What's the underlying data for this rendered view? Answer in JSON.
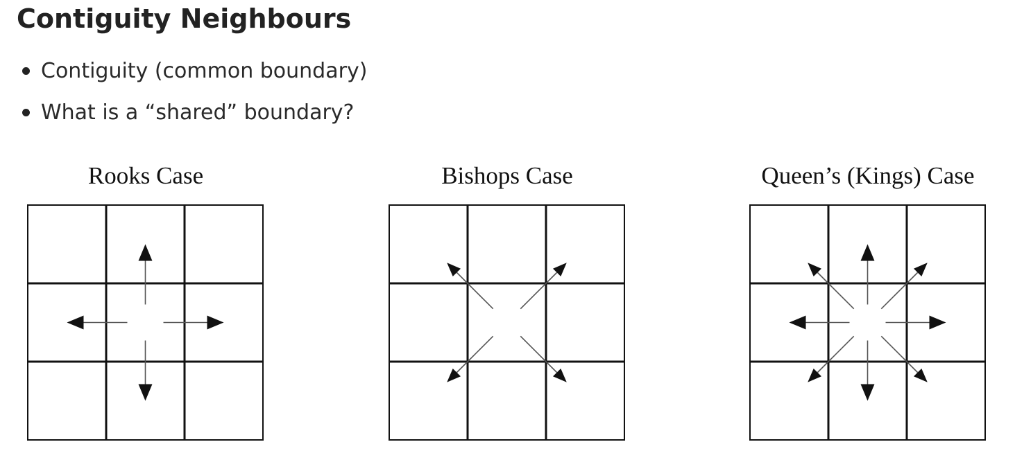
{
  "page": {
    "title": "Contiguity Neighbours"
  },
  "bullets": [
    "Contiguity (common boundary)",
    "What is a “shared” boundary?"
  ],
  "diagrams": [
    {
      "caption": "Rooks Case",
      "directions": [
        "N",
        "E",
        "S",
        "W"
      ]
    },
    {
      "caption": "Bishops Case",
      "directions": [
        "NE",
        "SE",
        "SW",
        "NW"
      ]
    },
    {
      "caption": "Queen’s (Kings) Case",
      "directions": [
        "N",
        "NE",
        "E",
        "SE",
        "S",
        "SW",
        "W",
        "NW"
      ]
    }
  ],
  "colors": {
    "text": "#222222",
    "line": "#111111",
    "background": "#ffffff"
  }
}
